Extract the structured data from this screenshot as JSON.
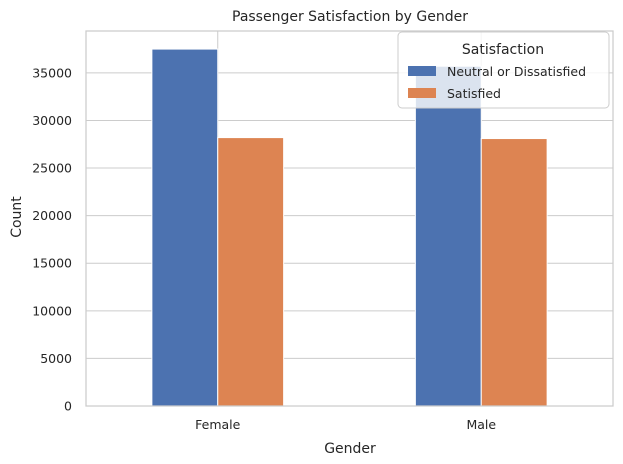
{
  "chart_data": {
    "type": "bar",
    "title": "Passenger Satisfaction by Gender",
    "xlabel": "Gender",
    "ylabel": "Count",
    "categories": [
      "Female",
      "Male"
    ],
    "series": [
      {
        "name": "Neutral or Dissatisfied",
        "values": [
          37500,
          35700
        ]
      },
      {
        "name": "Satisfied",
        "values": [
          28200,
          28100
        ]
      }
    ],
    "ylim": [
      0,
      39400
    ],
    "yticks": [
      0,
      5000,
      10000,
      15000,
      20000,
      25000,
      30000,
      35000
    ],
    "grid": true,
    "legend": {
      "title": "Satisfaction",
      "placement": "top-right"
    },
    "colors": {
      "series": [
        "#4c72b0",
        "#dd8452"
      ],
      "grid": "#cccccc",
      "frame": "#cccccc"
    }
  }
}
